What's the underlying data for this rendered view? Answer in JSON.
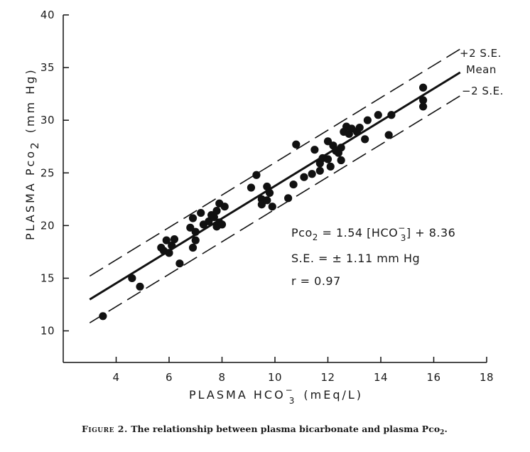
{
  "chart_data": {
    "type": "scatter",
    "xlabel": {
      "main": "PLASMA HCO",
      "sub": "3",
      "sup": "−",
      "rest": "(mEq/L)"
    },
    "ylabel": {
      "main": "PLASMA Pco",
      "sub": "2",
      "rest": "(mm Hg)"
    },
    "xlim": [
      2,
      18
    ],
    "ylim": [
      7,
      40
    ],
    "xticks": [
      4,
      6,
      8,
      10,
      12,
      14,
      16,
      18
    ],
    "xtick_labels": [
      "4",
      "6",
      "8",
      "10",
      "12",
      "14",
      "16",
      "18"
    ],
    "yticks": [
      10,
      15,
      20,
      25,
      30,
      35,
      40
    ],
    "ytick_labels": [
      "10",
      "15",
      "20",
      "25",
      "30",
      "35",
      "40"
    ],
    "grid": false,
    "regression": {
      "slope": 1.54,
      "intercept": 8.36,
      "se": 1.11,
      "x_range": [
        3,
        17
      ]
    },
    "line_labels": {
      "upper": "+2 S.E.",
      "mean": "Mean",
      "lower": "−2 S.E."
    },
    "annotations": {
      "equation": {
        "lhs": "Pco",
        "lhs_sub": "2",
        "mid": " = 1.54 [HCO",
        "mid_sub": "3",
        "mid_sup": "−",
        "rhs": "] + 8.36"
      },
      "se": "S.E. = ± 1.11 mm Hg",
      "r": "r = 0.97"
    },
    "points": [
      [
        3.5,
        11.4
      ],
      [
        4.6,
        15.0
      ],
      [
        4.9,
        14.2
      ],
      [
        5.7,
        17.9
      ],
      [
        5.8,
        17.6
      ],
      [
        5.9,
        18.6
      ],
      [
        6.0,
        17.4
      ],
      [
        6.1,
        18.1
      ],
      [
        6.2,
        18.7
      ],
      [
        6.4,
        16.4
      ],
      [
        6.8,
        19.8
      ],
      [
        6.9,
        20.7
      ],
      [
        6.9,
        17.9
      ],
      [
        7.0,
        18.6
      ],
      [
        7.0,
        19.4
      ],
      [
        7.2,
        21.2
      ],
      [
        7.3,
        20.1
      ],
      [
        7.5,
        20.4
      ],
      [
        7.6,
        21.0
      ],
      [
        7.7,
        20.8
      ],
      [
        7.8,
        21.4
      ],
      [
        7.8,
        19.9
      ],
      [
        7.9,
        22.1
      ],
      [
        7.9,
        20.3
      ],
      [
        8.1,
        21.8
      ],
      [
        8.0,
        20.1
      ],
      [
        9.1,
        23.6
      ],
      [
        9.3,
        24.8
      ],
      [
        9.5,
        22.5
      ],
      [
        9.5,
        22.0
      ],
      [
        9.7,
        23.7
      ],
      [
        9.7,
        22.4
      ],
      [
        9.8,
        23.1
      ],
      [
        9.9,
        21.8
      ],
      [
        10.5,
        22.6
      ],
      [
        10.7,
        23.9
      ],
      [
        10.8,
        27.7
      ],
      [
        11.1,
        24.6
      ],
      [
        11.4,
        24.9
      ],
      [
        11.5,
        27.2
      ],
      [
        11.7,
        25.9
      ],
      [
        11.7,
        25.2
      ],
      [
        11.8,
        26.4
      ],
      [
        12.0,
        28.0
      ],
      [
        12.0,
        26.3
      ],
      [
        12.1,
        25.6
      ],
      [
        12.2,
        27.6
      ],
      [
        12.3,
        27.1
      ],
      [
        12.4,
        26.9
      ],
      [
        12.5,
        27.4
      ],
      [
        12.5,
        26.2
      ],
      [
        12.6,
        28.9
      ],
      [
        12.7,
        29.4
      ],
      [
        12.8,
        28.7
      ],
      [
        12.9,
        29.2
      ],
      [
        13.1,
        28.9
      ],
      [
        13.2,
        29.3
      ],
      [
        13.4,
        28.2
      ],
      [
        13.5,
        30.0
      ],
      [
        13.9,
        30.5
      ],
      [
        14.3,
        28.6
      ],
      [
        14.4,
        30.5
      ],
      [
        15.6,
        33.1
      ],
      [
        15.6,
        31.9
      ],
      [
        15.6,
        31.3
      ]
    ]
  },
  "caption": {
    "lead": "Figure 2.",
    "text": " The relationship between plasma bicarbonate and plasma Pco",
    "sub": "2",
    "end": "."
  }
}
